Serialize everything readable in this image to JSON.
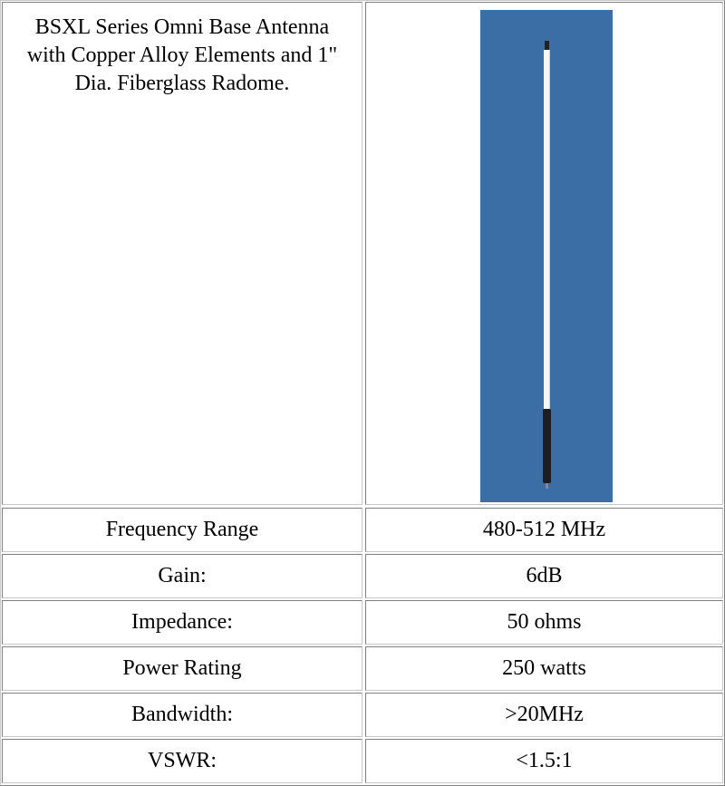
{
  "description": "BSXL Series Omni Base Antenna with Copper Alloy Elements and 1\" Dia. Fiberglass Radome.",
  "specs": [
    [
      "Frequency Range",
      "480-512 MHz"
    ],
    [
      "Gain:",
      "6dB"
    ],
    [
      "Impedance:",
      "50 ohms"
    ],
    [
      "Power Rating",
      "250 watts"
    ],
    [
      "Bandwidth:",
      ">20MHz"
    ],
    [
      "VSWR:",
      "<1.5:1"
    ]
  ]
}
